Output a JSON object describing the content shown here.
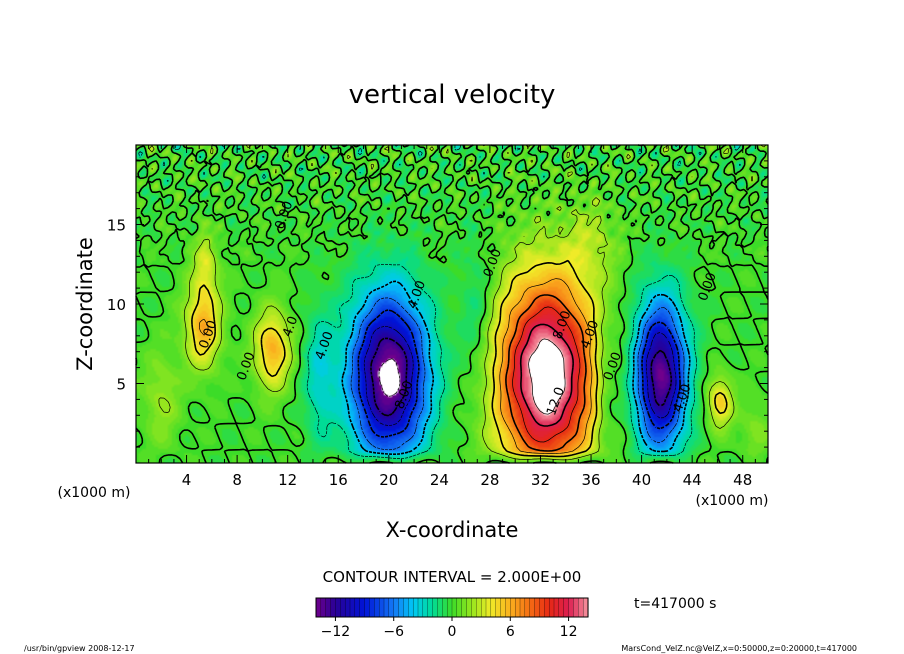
{
  "chart_data": {
    "type": "heatmap",
    "title": "vertical velocity",
    "xlabel": "X-coordinate",
    "ylabel": "Z-coordinate",
    "x_unit": "(x1000 m)",
    "y_unit": "(x1000 m)",
    "xlim": [
      0,
      50
    ],
    "ylim": [
      0,
      20
    ],
    "x_ticks": [
      4,
      8,
      12,
      16,
      20,
      24,
      28,
      32,
      36,
      40,
      44,
      48
    ],
    "y_ticks": [
      5,
      10,
      15
    ],
    "contour_interval_text": "CONTOUR INTERVAL = 2.000E+00",
    "time_text": "t=417000 s",
    "colorbar": {
      "min": -14,
      "max": 14,
      "ticks": [
        -12,
        -6,
        0,
        6,
        12
      ],
      "tick_labels": [
        "−12",
        "−6",
        "0",
        "6",
        "12"
      ]
    },
    "contour_labels": [
      {
        "text": "4.00",
        "x": 22.5,
        "z": 10.5
      },
      {
        "text": "8.00",
        "x": 21.5,
        "z": 4.2
      },
      {
        "text": "4.00",
        "x": 15.2,
        "z": 7.3
      },
      {
        "text": "8.00",
        "x": 34.0,
        "z": 8.6
      },
      {
        "text": "12.0",
        "x": 33.5,
        "z": 3.8
      },
      {
        "text": "4.00",
        "x": 36.2,
        "z": 8.0
      },
      {
        "text": "0.00",
        "x": 38.0,
        "z": 6.0
      },
      {
        "text": "0.00",
        "x": 28.5,
        "z": 12.5
      },
      {
        "text": "4.00",
        "x": 43.5,
        "z": 4.0
      },
      {
        "text": "0.00",
        "x": 45.5,
        "z": 11.0
      },
      {
        "text": "0.00",
        "x": 9.0,
        "z": 6.0
      },
      {
        "text": "4.0",
        "x": 12.5,
        "z": 8.5
      },
      {
        "text": "0.00",
        "x": 6.0,
        "z": 8.0
      },
      {
        "text": "0.00",
        "x": 12.0,
        "z": 15.5
      }
    ],
    "field_extrema": [
      {
        "x": 32.5,
        "z": 5.5,
        "rx": 3.8,
        "rz": 6.0,
        "amp": 16
      },
      {
        "x": 20.0,
        "z": 5.5,
        "rx": 3.0,
        "rz": 5.0,
        "amp": -15
      },
      {
        "x": 41.5,
        "z": 5.5,
        "rx": 2.0,
        "rz": 4.5,
        "amp": -14
      },
      {
        "x": 5.3,
        "z": 8.6,
        "rx": 1.4,
        "rz": 2.6,
        "amp": 6
      },
      {
        "x": 10.8,
        "z": 7.1,
        "rx": 1.4,
        "rz": 2.4,
        "amp": 6
      },
      {
        "x": 46.2,
        "z": 3.8,
        "rx": 1.0,
        "rz": 1.6,
        "amp": 5
      },
      {
        "x": 27.0,
        "z": 9.0,
        "rx": 1.4,
        "rz": 5.0,
        "amp": -2
      },
      {
        "x": 37.2,
        "z": 5.0,
        "rx": 1.0,
        "rz": 4.0,
        "amp": -2.5
      },
      {
        "x": 14.5,
        "z": 5.5,
        "rx": 1.2,
        "rz": 4.0,
        "amp": -3
      },
      {
        "x": 2.0,
        "z": 4.0,
        "rx": 1.5,
        "rz": 3.0,
        "amp": 2
      },
      {
        "x": 5.5,
        "z": 12.5,
        "rx": 1.0,
        "rz": 2.0,
        "amp": 3
      },
      {
        "x": 36.0,
        "z": 14.0,
        "rx": 2.0,
        "rz": 2.5,
        "amp": 2
      },
      {
        "x": 49.0,
        "z": 2.0,
        "rx": 1.2,
        "rz": 2.0,
        "amp": 1.5
      }
    ]
  },
  "footer": {
    "left": "/usr/bin/gpview  2008-12-17",
    "right": "MarsCond_VelZ.nc@VelZ,x=0:50000,z=0:20000,t=417000"
  }
}
